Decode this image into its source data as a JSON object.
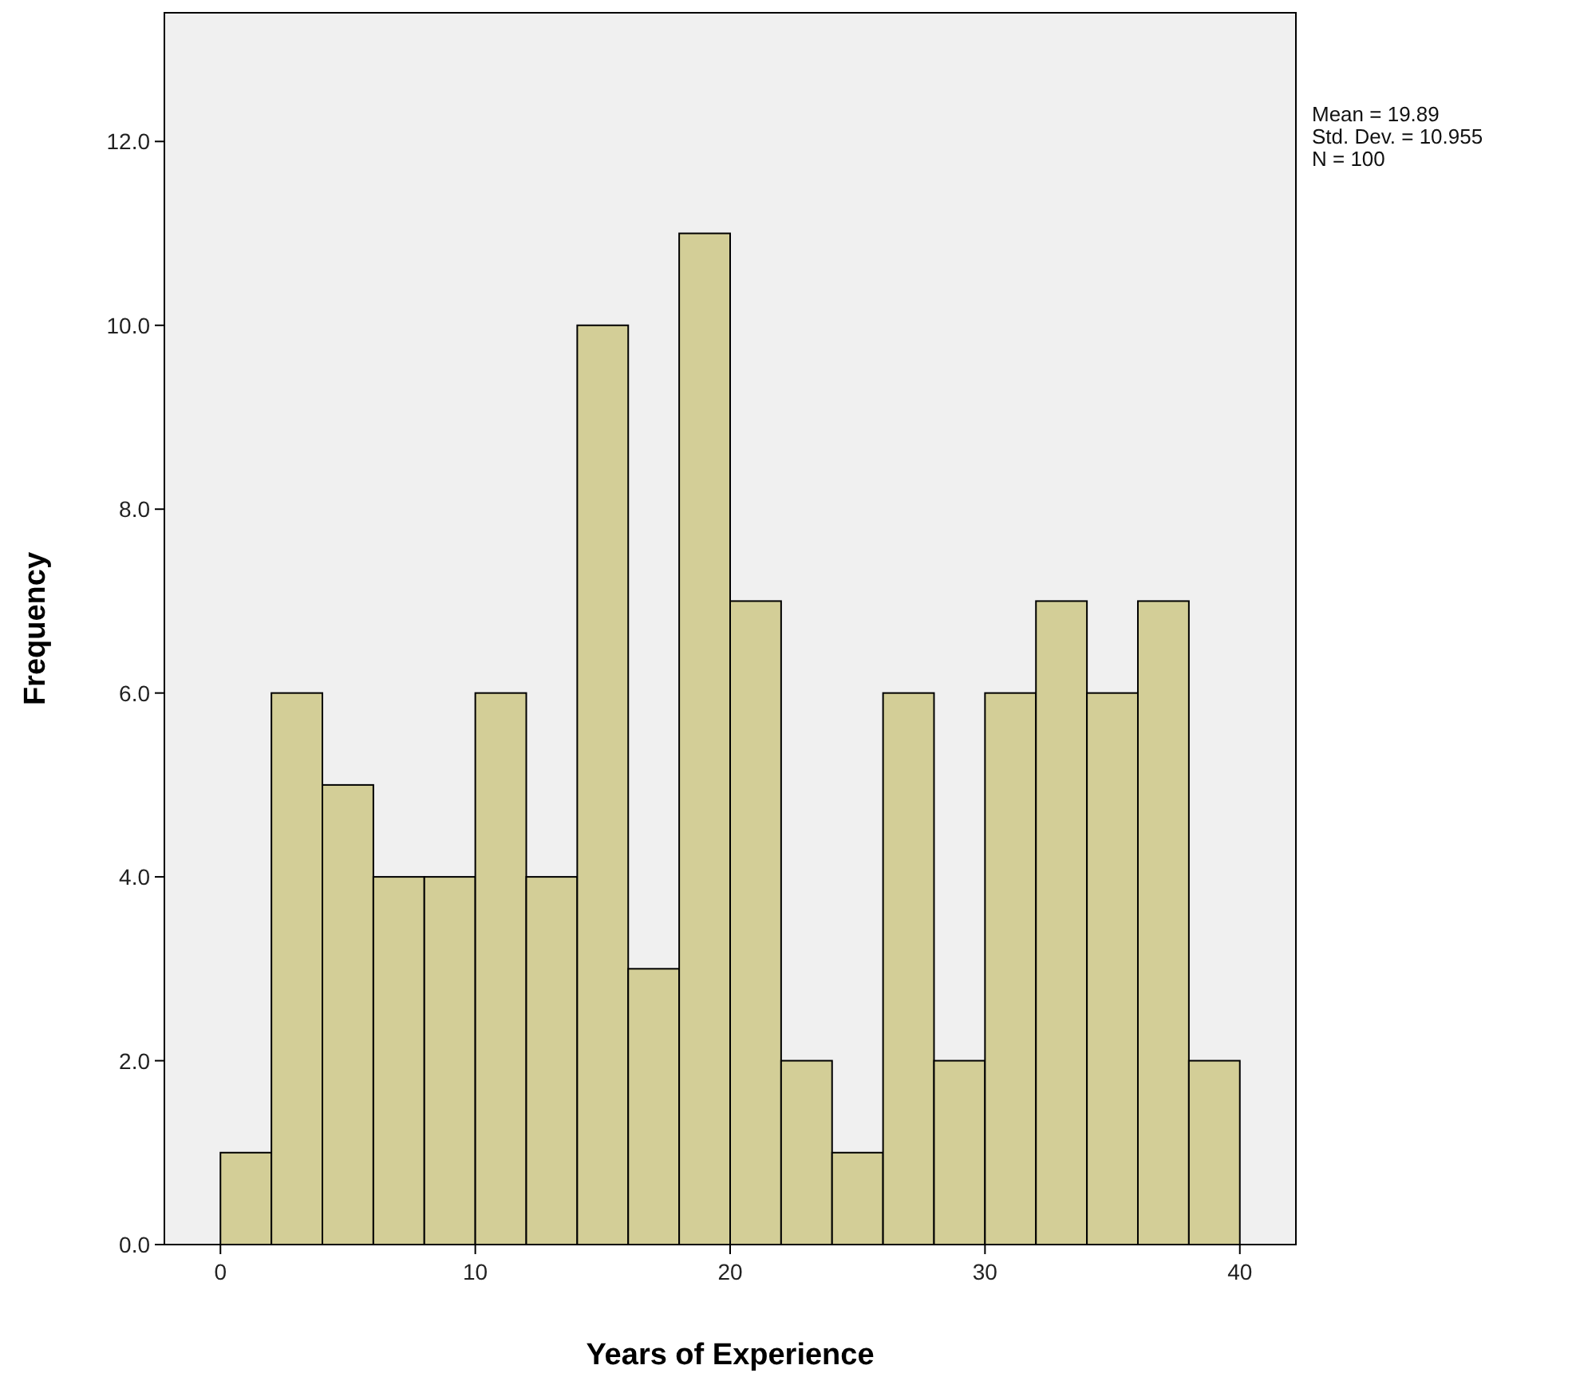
{
  "chart_data": {
    "type": "histogram",
    "xlabel": "Years of Experience",
    "ylabel": "Frequency",
    "bins": [
      0,
      2,
      4,
      6,
      8,
      10,
      12,
      14,
      16,
      18,
      20,
      22,
      24,
      26,
      28,
      30,
      32,
      34,
      36,
      38,
      40
    ],
    "values": [
      1,
      6,
      5,
      4,
      4,
      6,
      4,
      10,
      3,
      11,
      7,
      2,
      1,
      6,
      2,
      6,
      7,
      6,
      7,
      2
    ],
    "color": "#d3ce97",
    "xlim": [
      -2.2,
      42.2
    ],
    "xticks": [
      0,
      10,
      20,
      30,
      40
    ],
    "ylim": [
      0,
      13.4
    ],
    "yticks": [
      {
        "value": 0,
        "label": "0.0"
      },
      {
        "value": 2,
        "label": "2.0"
      },
      {
        "value": 4,
        "label": "4.0"
      },
      {
        "value": 6,
        "label": "6.0"
      },
      {
        "value": 8,
        "label": "8.0"
      },
      {
        "value": 10,
        "label": "10.0"
      },
      {
        "value": 12,
        "label": "12.0"
      }
    ],
    "grid": false,
    "annotations": [
      "Mean = 19.89",
      "Std. Dev. = 10.955",
      "N = 100"
    ]
  }
}
